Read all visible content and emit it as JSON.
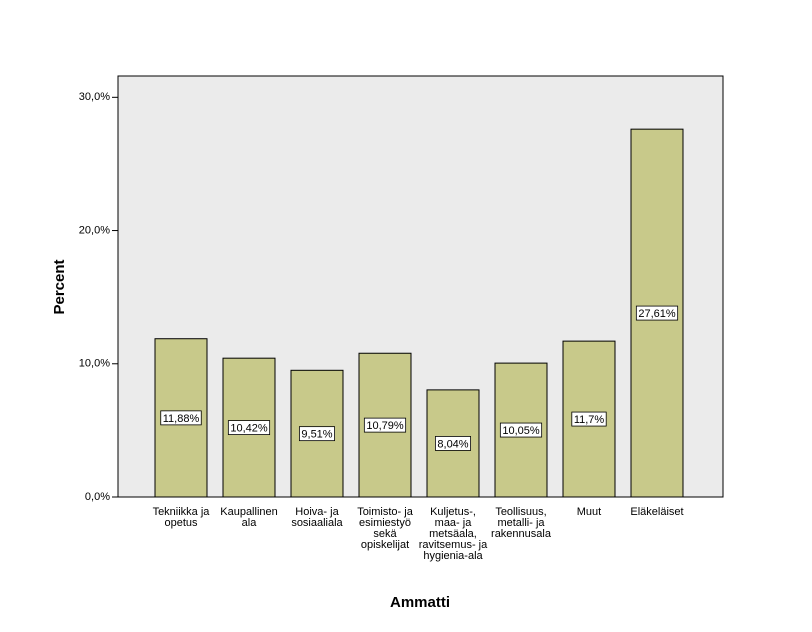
{
  "chart_data": {
    "type": "bar",
    "x_label": "Ammatti",
    "y_label": "Percent",
    "categories": [
      "Tekniikka ja opetus",
      "Kaupallinen ala",
      "Hoiva- ja sosiaaliala",
      "Toimisto- ja esimiestyö sekä opiskelijat",
      "Kuljetus-, maa- ja metsäala, ravitsemus- ja hygienia-ala",
      "Teollisuus, metalli- ja rakennusala",
      "Muut",
      "Eläkeläiset"
    ],
    "values": [
      11.88,
      10.42,
      9.51,
      10.79,
      8.04,
      10.05,
      11.7,
      27.61
    ],
    "value_labels": [
      "11,88%",
      "10,42%",
      "9,51%",
      "10,79%",
      "8,04%",
      "10,05%",
      "11,7%",
      "27,61%"
    ],
    "color": "#c8c98a",
    "ylim": [
      0,
      31.6
    ],
    "yticks": [
      {
        "value": 0,
        "label": "0,0%"
      },
      {
        "value": 10,
        "label": "10,0%"
      },
      {
        "value": 20,
        "label": "20,0%"
      },
      {
        "value": 30,
        "label": "30,0%"
      }
    ]
  }
}
